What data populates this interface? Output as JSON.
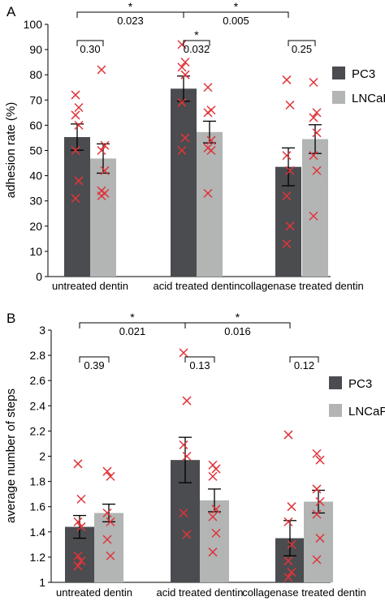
{
  "colors": {
    "pc3": "#4a4c4f",
    "lncap": "#b2b5b4",
    "points": "#e0343a"
  },
  "chart_data": [
    {
      "type": "bar",
      "panel_label": "A",
      "categories": [
        "untreated dentin",
        "acid treated dentin",
        "collagenase treated dentin"
      ],
      "ylabel": "adhesion rate (%)",
      "xlabel": "",
      "ylim": [
        0,
        100
      ],
      "yticks": [
        0,
        10,
        20,
        30,
        40,
        50,
        60,
        70,
        80,
        90,
        100
      ],
      "ytick_labels": [
        "0",
        "10",
        "20",
        "30",
        "40",
        "50",
        "60",
        "70",
        "80",
        "90",
        "100"
      ],
      "legend": {
        "position": "right",
        "entries": [
          "PC3",
          "LNCaP"
        ]
      },
      "series": [
        {
          "name": "PC3",
          "values": [
            55.3,
            74.5,
            43.5
          ],
          "errors": [
            5.2,
            5.0,
            7.5
          ],
          "points": [
            [
              72,
              67,
              64,
              60,
              50,
              38,
              31
            ],
            [
              92,
              85,
              83,
              80,
              69,
              55,
              50
            ],
            [
              78,
              68,
              48,
              42,
              32,
              20,
              13
            ]
          ]
        },
        {
          "name": "LNCaP",
          "values": [
            46.8,
            57.3,
            54.5
          ],
          "errors": [
            5.8,
            4.3,
            5.7
          ],
          "points": [
            [
              82,
              52,
              50,
              42,
              34,
              33,
              32
            ],
            [
              75,
              66,
              65,
              54,
              51,
              50,
              33
            ],
            [
              77,
              65,
              63,
              57,
              48,
              42,
              24
            ]
          ]
        }
      ],
      "annotations": [
        {
          "from": 0,
          "to": 2,
          "level": 1,
          "star": "*",
          "p": "0.023"
        },
        {
          "from": 2,
          "to": 4,
          "level": 1,
          "star": "*",
          "p": "0.005"
        },
        {
          "from": 0,
          "to": 1,
          "level": 0,
          "star": "",
          "p": "0.30"
        },
        {
          "from": 2,
          "to": 3,
          "level": 0,
          "star": "*",
          "p": "0.032"
        },
        {
          "from": 4,
          "to": 5,
          "level": 0,
          "star": "",
          "p": "0.25"
        }
      ]
    },
    {
      "type": "bar",
      "panel_label": "B",
      "categories": [
        "untreated dentin",
        "acid treated dentin",
        "collagenase treated dentin"
      ],
      "ylabel": "average number of steps",
      "xlabel": "",
      "ylim": [
        1,
        3
      ],
      "yticks": [
        1,
        1.2,
        1.4,
        1.6,
        1.8,
        2,
        2.2,
        2.4,
        2.6,
        2.8,
        3
      ],
      "ytick_labels": [
        "1",
        "1.2",
        "1.4",
        "1.6",
        "1.8",
        "2",
        "2.2",
        "2.4",
        "2.6",
        "2.8",
        "3"
      ],
      "legend": {
        "position": "right",
        "entries": [
          "PC3",
          "LNCaP"
        ]
      },
      "series": [
        {
          "name": "PC3",
          "values": [
            1.44,
            1.97,
            1.35
          ],
          "errors": [
            0.09,
            0.18,
            0.14
          ],
          "points": [
            [
              1.94,
              1.66,
              1.48,
              1.44,
              1.21,
              1.17,
              1.13
            ],
            [
              2.82,
              2.44,
              2.09,
              2.0,
              1.55,
              1.38
            ],
            [
              2.17,
              1.6,
              1.48,
              1.3,
              1.17,
              1.08,
              1.04
            ]
          ]
        },
        {
          "name": "LNCaP",
          "values": [
            1.55,
            1.65,
            1.64
          ],
          "errors": [
            0.07,
            0.09,
            0.09
          ],
          "points": [
            [
              1.88,
              1.84,
              1.55,
              1.48,
              1.34,
              1.21
            ],
            [
              1.93,
              1.9,
              1.84,
              1.58,
              1.52,
              1.39,
              1.24
            ],
            [
              2.02,
              1.97,
              1.74,
              1.64,
              1.54,
              1.35,
              1.18
            ]
          ]
        }
      ],
      "annotations": [
        {
          "from": 0,
          "to": 2,
          "level": 1,
          "star": "*",
          "p": "0.021"
        },
        {
          "from": 2,
          "to": 4,
          "level": 1,
          "star": "*",
          "p": "0.016"
        },
        {
          "from": 0,
          "to": 1,
          "level": 0,
          "star": "",
          "p": "0.39"
        },
        {
          "from": 2,
          "to": 3,
          "level": 0,
          "star": "",
          "p": "0.13"
        },
        {
          "from": 4,
          "to": 5,
          "level": 0,
          "star": "",
          "p": "0.12"
        }
      ]
    }
  ]
}
